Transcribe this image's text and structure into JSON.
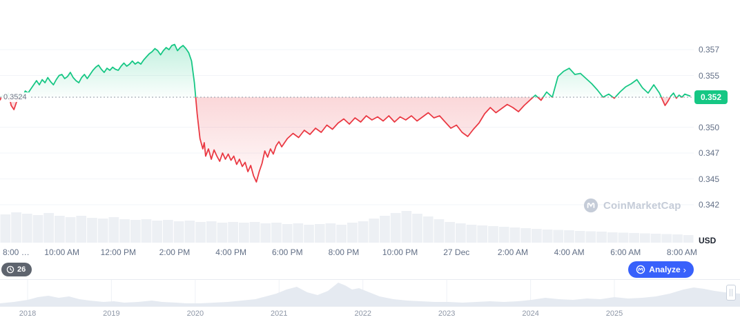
{
  "colors": {
    "green": "#16C784",
    "red": "#EA3943",
    "blue": "#3861FB",
    "axis_text": "#616E85",
    "grid": "#F2F4F8",
    "volume": "#EDF0F4",
    "nav_area": "#E5EAF1",
    "baseline_dotted": "#8F96A3"
  },
  "chart": {
    "baseline_label": "0.3524",
    "current_price": "0.352",
    "unit": "USD",
    "watermark": "CoinMarketCap"
  },
  "toolbar": {
    "replay_count": "26",
    "analyze_label": "Analyze",
    "analyze_chevron": "›"
  },
  "navigator": {
    "years": [
      "2018",
      "2019",
      "2020",
      "2021",
      "2022",
      "2023",
      "2024",
      "2025"
    ],
    "profile": [
      [
        0,
        4
      ],
      [
        20,
        6
      ],
      [
        40,
        9
      ],
      [
        55,
        13
      ],
      [
        70,
        15
      ],
      [
        85,
        12
      ],
      [
        100,
        14
      ],
      [
        115,
        10
      ],
      [
        130,
        8
      ],
      [
        150,
        6
      ],
      [
        165,
        7
      ],
      [
        180,
        5
      ],
      [
        200,
        6
      ],
      [
        220,
        8
      ],
      [
        235,
        6
      ],
      [
        255,
        5
      ],
      [
        270,
        4
      ],
      [
        290,
        4
      ],
      [
        310,
        5
      ],
      [
        330,
        6
      ],
      [
        350,
        8
      ],
      [
        370,
        10
      ],
      [
        385,
        14
      ],
      [
        400,
        18
      ],
      [
        415,
        24
      ],
      [
        430,
        28
      ],
      [
        445,
        20
      ],
      [
        460,
        16
      ],
      [
        475,
        22
      ],
      [
        490,
        34
      ],
      [
        500,
        30
      ],
      [
        510,
        24
      ],
      [
        520,
        26
      ],
      [
        535,
        20
      ],
      [
        550,
        14
      ],
      [
        570,
        10
      ],
      [
        590,
        8
      ],
      [
        610,
        7
      ],
      [
        630,
        6
      ],
      [
        650,
        6
      ],
      [
        670,
        5
      ],
      [
        690,
        6
      ],
      [
        710,
        7
      ],
      [
        730,
        6
      ],
      [
        750,
        7
      ],
      [
        770,
        9
      ],
      [
        790,
        12
      ],
      [
        810,
        10
      ],
      [
        830,
        9
      ],
      [
        850,
        11
      ],
      [
        870,
        10
      ],
      [
        890,
        13
      ],
      [
        910,
        11
      ],
      [
        930,
        12
      ],
      [
        950,
        14
      ],
      [
        970,
        18
      ],
      [
        990,
        24
      ],
      [
        1005,
        27
      ],
      [
        1020,
        25
      ],
      [
        1035,
        22
      ],
      [
        1050,
        20
      ],
      [
        1060,
        19
      ],
      [
        1072,
        18
      ]
    ]
  },
  "chart_data": {
    "type": "line",
    "title": "24h cryptocurrency price chart (USD)",
    "x_unit": "hours since 8:00 AM",
    "ylabel": "USD",
    "baseline": 0.3524,
    "ylim": [
      0.342,
      0.3575
    ],
    "xlim": [
      -0.2,
      24.3
    ],
    "y_ticks": [
      {
        "price": 0.357,
        "label": "0.357"
      },
      {
        "price": 0.3545,
        "label": "0.355"
      },
      {
        "price": 0.352,
        "label": "0.352",
        "hidden": true
      },
      {
        "price": 0.3495,
        "label": "0.350"
      },
      {
        "price": 0.347,
        "label": "0.347"
      },
      {
        "price": 0.3445,
        "label": "0.345"
      },
      {
        "price": 0.342,
        "label": "0.342"
      }
    ],
    "x_ticks": [
      {
        "t": 0,
        "label": "8:00 …",
        "align": "left"
      },
      {
        "t": 2,
        "label": "10:00 AM"
      },
      {
        "t": 4,
        "label": "12:00 PM"
      },
      {
        "t": 6,
        "label": "2:00 PM"
      },
      {
        "t": 8,
        "label": "4:00 PM"
      },
      {
        "t": 10,
        "label": "6:00 PM"
      },
      {
        "t": 12,
        "label": "8:00 PM"
      },
      {
        "t": 14,
        "label": "10:00 PM"
      },
      {
        "t": 16,
        "label": "27 Dec"
      },
      {
        "t": 18,
        "label": "2:00 AM"
      },
      {
        "t": 20,
        "label": "4:00 AM"
      },
      {
        "t": 22,
        "label": "6:00 AM"
      },
      {
        "t": 24,
        "label": "8:00 AM"
      }
    ],
    "points": [
      [
        -0.2,
        0.3521
      ],
      [
        -0.1,
        0.3526
      ],
      [
        0.0,
        0.3522
      ],
      [
        0.1,
        0.3528
      ],
      [
        0.2,
        0.3516
      ],
      [
        0.3,
        0.3512
      ],
      [
        0.4,
        0.352
      ],
      [
        0.5,
        0.3526
      ],
      [
        0.6,
        0.3524
      ],
      [
        0.7,
        0.353
      ],
      [
        0.8,
        0.3528
      ],
      [
        0.9,
        0.3532
      ],
      [
        1.0,
        0.3536
      ],
      [
        1.1,
        0.354
      ],
      [
        1.2,
        0.3536
      ],
      [
        1.3,
        0.3541
      ],
      [
        1.4,
        0.3538
      ],
      [
        1.5,
        0.3543
      ],
      [
        1.6,
        0.3539
      ],
      [
        1.7,
        0.3536
      ],
      [
        1.8,
        0.3541
      ],
      [
        1.9,
        0.3545
      ],
      [
        2.0,
        0.3546
      ],
      [
        2.1,
        0.3542
      ],
      [
        2.2,
        0.3544
      ],
      [
        2.3,
        0.3548
      ],
      [
        2.4,
        0.3543
      ],
      [
        2.5,
        0.354
      ],
      [
        2.6,
        0.3538
      ],
      [
        2.7,
        0.3543
      ],
      [
        2.8,
        0.3546
      ],
      [
        2.9,
        0.3542
      ],
      [
        3.0,
        0.3546
      ],
      [
        3.1,
        0.355
      ],
      [
        3.2,
        0.3553
      ],
      [
        3.3,
        0.3555
      ],
      [
        3.4,
        0.3551
      ],
      [
        3.5,
        0.3548
      ],
      [
        3.6,
        0.3552
      ],
      [
        3.7,
        0.355
      ],
      [
        3.8,
        0.3553
      ],
      [
        3.9,
        0.3551
      ],
      [
        4.0,
        0.355
      ],
      [
        4.1,
        0.3554
      ],
      [
        4.2,
        0.3557
      ],
      [
        4.3,
        0.3554
      ],
      [
        4.4,
        0.3556
      ],
      [
        4.5,
        0.3559
      ],
      [
        4.6,
        0.3556
      ],
      [
        4.7,
        0.3558
      ],
      [
        4.8,
        0.3556
      ],
      [
        4.9,
        0.356
      ],
      [
        5.0,
        0.3563
      ],
      [
        5.1,
        0.3566
      ],
      [
        5.2,
        0.3568
      ],
      [
        5.3,
        0.3571
      ],
      [
        5.4,
        0.3569
      ],
      [
        5.5,
        0.3565
      ],
      [
        5.6,
        0.3569
      ],
      [
        5.7,
        0.3572
      ],
      [
        5.8,
        0.357
      ],
      [
        5.9,
        0.3574
      ],
      [
        6.0,
        0.3575
      ],
      [
        6.1,
        0.3569
      ],
      [
        6.2,
        0.3572
      ],
      [
        6.3,
        0.3574
      ],
      [
        6.4,
        0.3571
      ],
      [
        6.5,
        0.3567
      ],
      [
        6.6,
        0.3559
      ],
      [
        6.7,
        0.3538
      ],
      [
        6.8,
        0.3508
      ],
      [
        6.9,
        0.3484
      ],
      [
        7.0,
        0.3474
      ],
      [
        7.05,
        0.348
      ],
      [
        7.1,
        0.3467
      ],
      [
        7.2,
        0.3474
      ],
      [
        7.3,
        0.3464
      ],
      [
        7.4,
        0.3473
      ],
      [
        7.5,
        0.3467
      ],
      [
        7.6,
        0.3462
      ],
      [
        7.7,
        0.347
      ],
      [
        7.8,
        0.3464
      ],
      [
        7.9,
        0.3469
      ],
      [
        8.0,
        0.3463
      ],
      [
        8.1,
        0.3467
      ],
      [
        8.2,
        0.3459
      ],
      [
        8.3,
        0.3464
      ],
      [
        8.4,
        0.3457
      ],
      [
        8.5,
        0.3461
      ],
      [
        8.6,
        0.3452
      ],
      [
        8.7,
        0.3458
      ],
      [
        8.8,
        0.3448
      ],
      [
        8.9,
        0.3442
      ],
      [
        9.0,
        0.3452
      ],
      [
        9.1,
        0.346
      ],
      [
        9.2,
        0.3472
      ],
      [
        9.3,
        0.3466
      ],
      [
        9.4,
        0.3474
      ],
      [
        9.5,
        0.3469
      ],
      [
        9.6,
        0.3477
      ],
      [
        9.7,
        0.3481
      ],
      [
        9.8,
        0.3476
      ],
      [
        9.9,
        0.348
      ],
      [
        10.0,
        0.3484
      ],
      [
        10.2,
        0.3489
      ],
      [
        10.4,
        0.3485
      ],
      [
        10.6,
        0.3492
      ],
      [
        10.8,
        0.3488
      ],
      [
        11.0,
        0.3494
      ],
      [
        11.2,
        0.349
      ],
      [
        11.4,
        0.3497
      ],
      [
        11.6,
        0.3493
      ],
      [
        11.8,
        0.3499
      ],
      [
        12.0,
        0.3503
      ],
      [
        12.2,
        0.3498
      ],
      [
        12.4,
        0.3504
      ],
      [
        12.6,
        0.35
      ],
      [
        12.8,
        0.3506
      ],
      [
        13.0,
        0.3502
      ],
      [
        13.2,
        0.3505
      ],
      [
        13.4,
        0.3501
      ],
      [
        13.6,
        0.3506
      ],
      [
        13.8,
        0.35
      ],
      [
        14.0,
        0.3505
      ],
      [
        14.2,
        0.3502
      ],
      [
        14.4,
        0.3506
      ],
      [
        14.6,
        0.3501
      ],
      [
        14.8,
        0.3505
      ],
      [
        15.0,
        0.3509
      ],
      [
        15.2,
        0.3504
      ],
      [
        15.4,
        0.3506
      ],
      [
        15.6,
        0.35
      ],
      [
        15.8,
        0.3494
      ],
      [
        16.0,
        0.3497
      ],
      [
        16.2,
        0.349
      ],
      [
        16.4,
        0.3486
      ],
      [
        16.6,
        0.3493
      ],
      [
        16.8,
        0.3499
      ],
      [
        17.0,
        0.3508
      ],
      [
        17.2,
        0.3514
      ],
      [
        17.4,
        0.3509
      ],
      [
        17.6,
        0.3513
      ],
      [
        17.8,
        0.3517
      ],
      [
        18.0,
        0.3514
      ],
      [
        18.2,
        0.351
      ],
      [
        18.4,
        0.3516
      ],
      [
        18.6,
        0.3521
      ],
      [
        18.8,
        0.3526
      ],
      [
        19.0,
        0.3521
      ],
      [
        19.2,
        0.3529
      ],
      [
        19.4,
        0.3524
      ],
      [
        19.6,
        0.3544
      ],
      [
        19.8,
        0.3549
      ],
      [
        20.0,
        0.3552
      ],
      [
        20.2,
        0.3546
      ],
      [
        20.4,
        0.3547
      ],
      [
        20.6,
        0.3542
      ],
      [
        20.8,
        0.3537
      ],
      [
        21.0,
        0.3531
      ],
      [
        21.2,
        0.3524
      ],
      [
        21.4,
        0.3527
      ],
      [
        21.6,
        0.3523
      ],
      [
        21.8,
        0.3529
      ],
      [
        22.0,
        0.3534
      ],
      [
        22.2,
        0.3537
      ],
      [
        22.4,
        0.3541
      ],
      [
        22.6,
        0.3533
      ],
      [
        22.8,
        0.3528
      ],
      [
        23.0,
        0.3536
      ],
      [
        23.2,
        0.3528
      ],
      [
        23.4,
        0.3516
      ],
      [
        23.5,
        0.352
      ],
      [
        23.6,
        0.3525
      ],
      [
        23.7,
        0.3528
      ],
      [
        23.8,
        0.3523
      ],
      [
        23.9,
        0.3526
      ],
      [
        24.0,
        0.3524
      ],
      [
        24.1,
        0.3527
      ],
      [
        24.3,
        0.3525
      ]
    ],
    "volume": [
      0.82,
      0.88,
      0.84,
      0.8,
      0.86,
      0.78,
      0.74,
      0.78,
      0.72,
      0.7,
      0.74,
      0.68,
      0.66,
      0.68,
      0.64,
      0.66,
      0.62,
      0.64,
      0.6,
      0.62,
      0.58,
      0.6,
      0.58,
      0.6,
      0.56,
      0.58,
      0.54,
      0.56,
      0.52,
      0.54,
      0.56,
      0.52,
      0.58,
      0.62,
      0.7,
      0.78,
      0.86,
      0.92,
      0.84,
      0.76,
      0.68,
      0.6,
      0.56,
      0.52,
      0.5,
      0.48,
      0.46,
      0.44,
      0.42,
      0.4,
      0.38,
      0.37,
      0.36,
      0.34,
      0.33,
      0.32,
      0.3,
      0.29,
      0.28,
      0.27,
      0.26,
      0.25,
      0.24,
      0.22
    ]
  }
}
